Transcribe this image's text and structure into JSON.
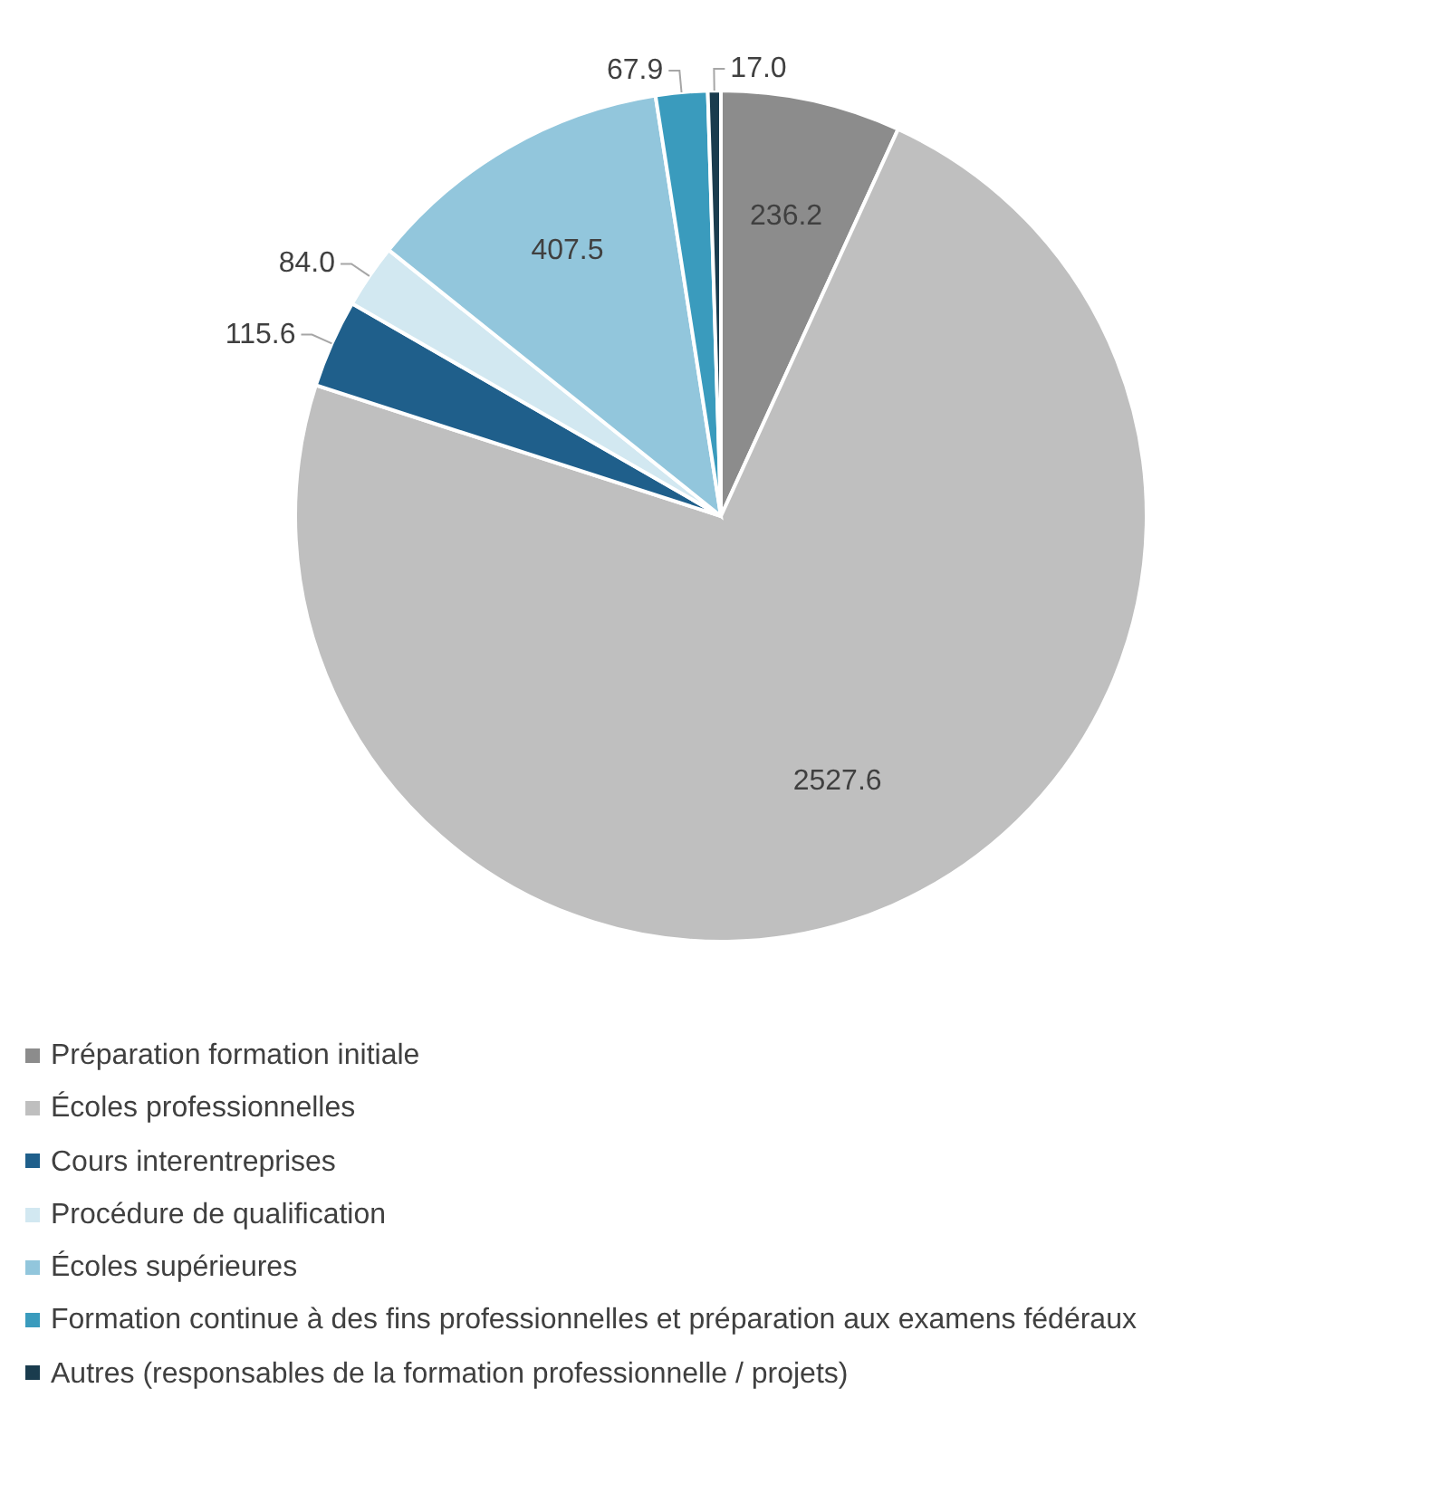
{
  "chart_data": {
    "type": "pie",
    "categories": [
      "Préparation formation initiale",
      "Écoles professionnelles",
      "Cours interentreprises",
      "Procédure de qualification",
      "Écoles supérieures",
      "Formation continue à des fins professionnelles et préparation aux examens fédéraux",
      "Autres (responsables de la formation professionnelle / projets)"
    ],
    "values": [
      236.2,
      2527.6,
      115.6,
      84.0,
      407.5,
      67.9,
      17.0
    ],
    "value_labels": [
      "236.2",
      "2527.6",
      "115.6",
      "84.0",
      "407.5",
      "67.9",
      "17.0"
    ],
    "colors": [
      "#8c8c8c",
      "#bfbfbf",
      "#1f5f8b",
      "#d2e8f1",
      "#92c6dc",
      "#3a9bbd",
      "#1a3c4e"
    ],
    "legend": "bottom"
  }
}
